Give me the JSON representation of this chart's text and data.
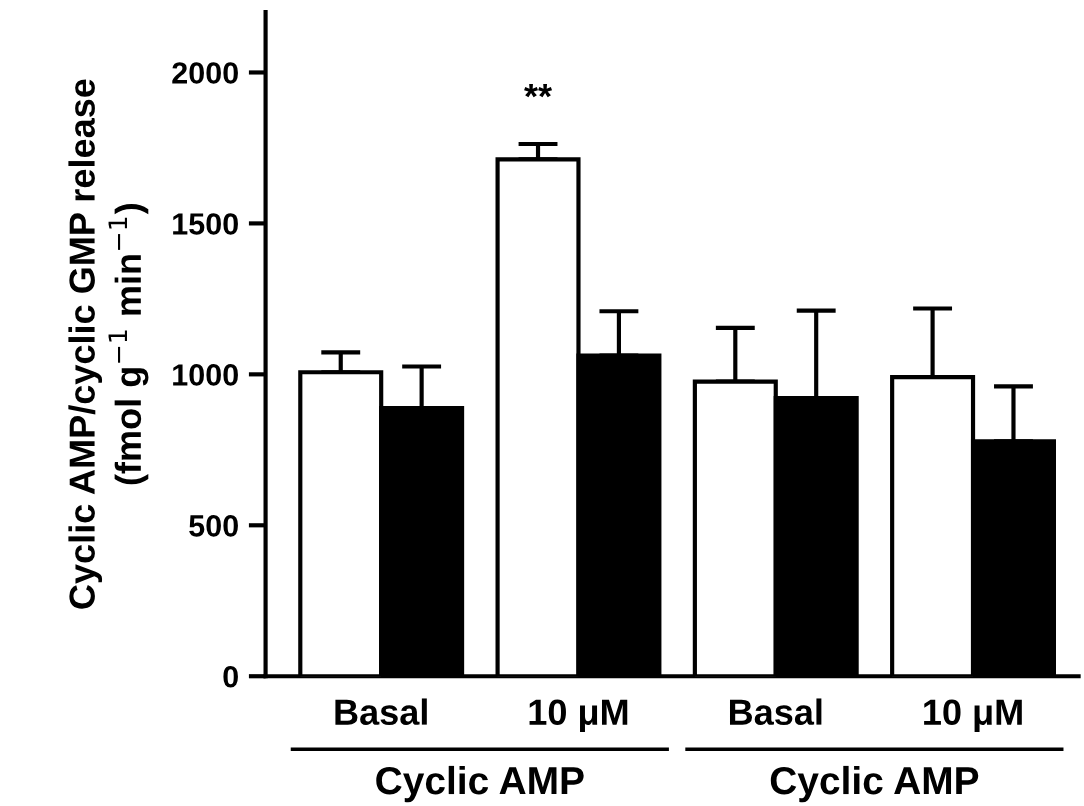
{
  "chart_data": {
    "type": "bar",
    "ylabel": "Cyclic AMP/cyclic GMP release\n(fmol g$^{−1}$ min$^{−1}$)",
    "categories": [
      "Basal",
      "10 μM",
      "Basal",
      "10 μM"
    ],
    "series": [
      {
        "color": "#ffffff",
        "values": [
          1007,
          1712,
          976,
          991
        ],
        "errors": [
          [
            1007,
            1073
          ],
          [
            1712,
            1763
          ],
          [
            976,
            1154
          ],
          [
            991,
            1218
          ]
        ]
      },
      {
        "color": "#000000",
        "values": [
          888,
          1062,
          921,
          778
        ],
        "errors": [
          [
            888,
            1026
          ],
          [
            1062,
            1209
          ],
          [
            921,
            1211
          ],
          [
            778,
            960
          ]
        ]
      }
    ],
    "ylim": [
      0,
      2200
    ],
    "yticks": [
      0,
      500,
      1000,
      1500,
      2000
    ],
    "grid": false,
    "legend": false,
    "annotations": [
      "**",
      "Cyclic AMP",
      "Cyclic AMP"
    ]
  }
}
